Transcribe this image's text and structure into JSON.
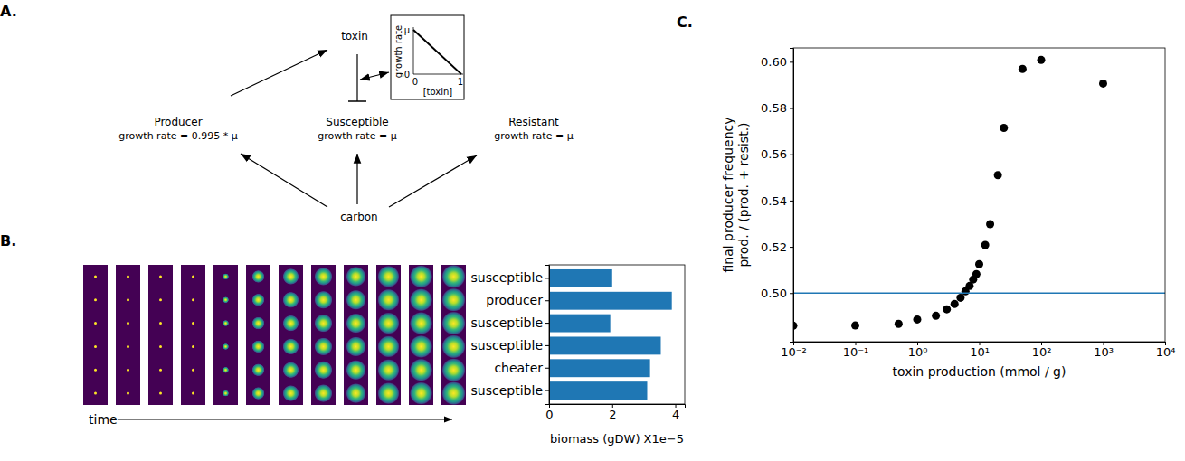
{
  "panel_labels": [
    "A.",
    "B.",
    "C."
  ],
  "diagram": {
    "nodes": [
      {
        "label": "toxin"
      },
      {
        "label": "Producer",
        "sublabel": "growth rate = 0.995 * μ"
      },
      {
        "label": "Susceptible",
        "sublabel": "growth rate = μ"
      },
      {
        "label": "Resistant",
        "sublabel": "growth rate = μ"
      },
      {
        "label": "carbon"
      }
    ],
    "inset": {
      "y_label": "growth rate",
      "x_label": "[toxin]",
      "y_tick_labels": [
        "0",
        "μ"
      ],
      "x_tick_labels": [
        "0",
        "1"
      ]
    }
  },
  "time_axis": {
    "label": "time"
  },
  "chart_data": [
    {
      "type": "bar",
      "orientation": "horizontal",
      "categories": [
        "susceptible",
        "producer",
        "susceptible",
        "susceptible",
        "cheater",
        "susceptible"
      ],
      "values": [
        2.0,
        3.89,
        1.94,
        3.54,
        3.2,
        3.11
      ],
      "color": "#1f77b4",
      "xlabel": "biomass (gDW) X1e−5",
      "xlim": [
        0,
        4.3
      ],
      "xticks": [
        0,
        2,
        4
      ]
    },
    {
      "type": "scatter",
      "log": "x",
      "xlabel": "toxin production (mmol / g)",
      "ylabel": [
        "final producer frequency",
        "prod. / (prod. + resist.)"
      ],
      "xlim": [
        0.01,
        10000
      ],
      "xticks": [
        {
          "value": 0.01,
          "label": "10⁻²"
        },
        {
          "value": 0.1,
          "label": "10⁻¹"
        },
        {
          "value": 1,
          "label": "10⁰"
        },
        {
          "value": 10,
          "label": "10¹"
        },
        {
          "value": 100,
          "label": "10²"
        },
        {
          "value": 1000,
          "label": "10³"
        },
        {
          "value": 10000,
          "label": "10⁴"
        }
      ],
      "ylim": [
        0.479,
        0.606
      ],
      "yticks": [
        {
          "value": 0.5,
          "label": "0.50"
        },
        0.52,
        0.54,
        0.56,
        0.58,
        {
          "value": 0.6,
          "label": "0.60"
        }
      ],
      "series": [
        {
          "type": "scatter",
          "color": "#000000",
          "marker": "circle",
          "x": [
            0.01,
            0.1,
            0.5,
            1,
            2,
            3,
            4,
            5,
            6,
            7,
            8,
            9,
            10,
            12.5,
            15,
            20,
            25,
            50,
            100,
            1000
          ],
          "values": [
            0.4859,
            0.486,
            0.4867,
            0.4886,
            0.4902,
            0.493,
            0.4953,
            0.498,
            0.5008,
            0.5031,
            0.5059,
            0.5082,
            0.5125,
            0.5208,
            0.5298,
            0.551,
            0.5714,
            0.5969,
            0.6008,
            0.5906
          ]
        },
        {
          "type": "line",
          "color": "#1f77b4",
          "line_style": "solid",
          "x": [
            0.01,
            10000
          ],
          "values": [
            0.5,
            0.5
          ]
        }
      ]
    }
  ]
}
